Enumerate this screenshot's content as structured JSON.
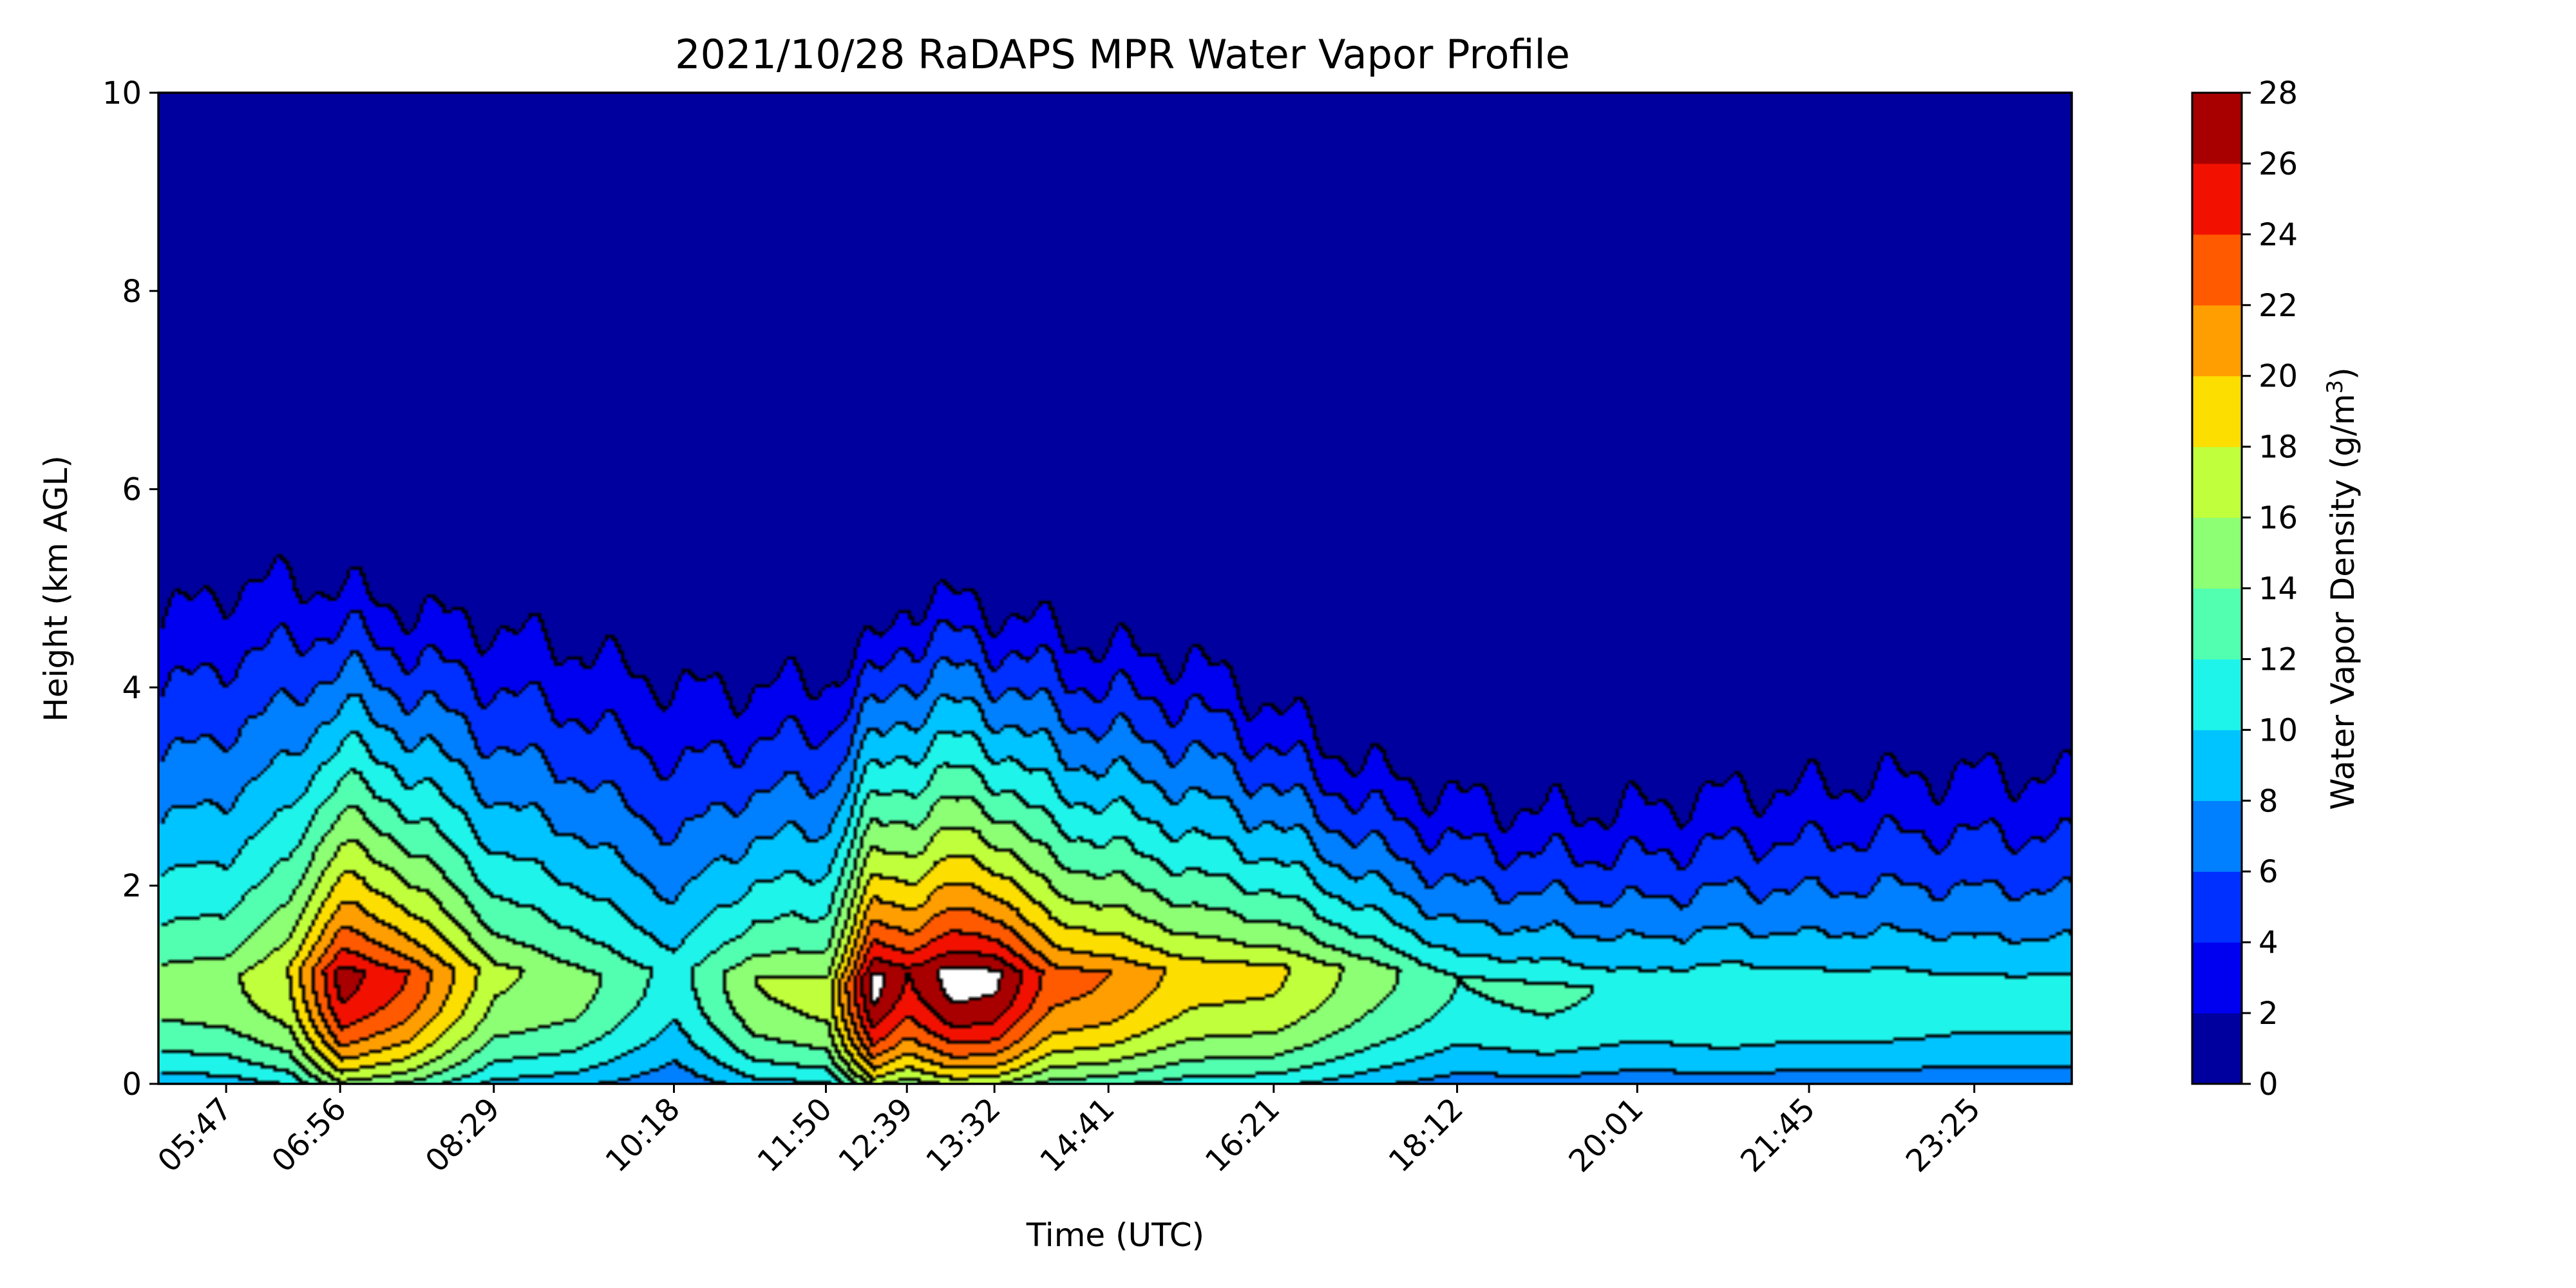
{
  "chart_data": {
    "type": "heatmap",
    "title": "2021/10/28 RaDAPS MPR Water Vapor Profile",
    "xlabel": "Time (UTC)",
    "ylabel": "Height (km AGL)",
    "ylim": [
      0,
      10
    ],
    "x_tick_labels": [
      {
        "label": "05:47",
        "hour": 5.783
      },
      {
        "label": "06:56",
        "hour": 6.933
      },
      {
        "label": "08:29",
        "hour": 8.483
      },
      {
        "label": "10:18",
        "hour": 10.3
      },
      {
        "label": "11:50",
        "hour": 11.833
      },
      {
        "label": "12:39",
        "hour": 12.65
      },
      {
        "label": "13:32",
        "hour": 13.533
      },
      {
        "label": "14:41",
        "hour": 14.683
      },
      {
        "label": "16:21",
        "hour": 16.35
      },
      {
        "label": "18:12",
        "hour": 18.2
      },
      {
        "label": "20:01",
        "hour": 20.017
      },
      {
        "label": "21:45",
        "hour": 21.75
      },
      {
        "label": "23:25",
        "hour": 23.417
      }
    ],
    "xlim_hours": [
      5.1,
      24.4
    ],
    "y_ticks": [
      0,
      2,
      4,
      6,
      8,
      10
    ],
    "colorbar": {
      "label": "Water Vapor Density (g/m³)",
      "label_base": "Water Vapor Density (g/m",
      "label_sup": "3",
      "label_end": ")",
      "levels": [
        0,
        2,
        4,
        6,
        8,
        10,
        12,
        14,
        16,
        18,
        20,
        22,
        24,
        26,
        28
      ],
      "colors": [
        "#00009f",
        "#0000f0",
        "#0030ff",
        "#0080ff",
        "#00c4ff",
        "#1ef4ea",
        "#52ffb0",
        "#8cff74",
        "#c0ff3c",
        "#fcde00",
        "#ff9e00",
        "#ff5a00",
        "#f21100",
        "#a80000"
      ]
    },
    "profiles": [
      {
        "hour": 5.1,
        "peak": 15.0,
        "peak_height": 1.1,
        "top": 4.7
      },
      {
        "hour": 5.783,
        "peak": 15.5,
        "peak_height": 1.1,
        "top": 5.0
      },
      {
        "hour": 6.4,
        "peak": 18.0,
        "peak_height": 1.2,
        "top": 5.1
      },
      {
        "hour": 6.933,
        "peak": 27.0,
        "peak_height": 1.15,
        "top": 5.0
      },
      {
        "hour": 7.6,
        "peak": 24.0,
        "peak_height": 1.15,
        "top": 4.8
      },
      {
        "hour": 8.483,
        "peak": 16.5,
        "peak_height": 1.2,
        "top": 4.6
      },
      {
        "hour": 9.3,
        "peak": 15.0,
        "peak_height": 1.1,
        "top": 4.4
      },
      {
        "hour": 10.3,
        "peak": 11.0,
        "peak_height": 1.2,
        "top": 4.0
      },
      {
        "hour": 11.1,
        "peak": 16.0,
        "peak_height": 1.1,
        "top": 4.0
      },
      {
        "hour": 11.833,
        "peak": 17.0,
        "peak_height": 1.0,
        "top": 4.1
      },
      {
        "hour": 12.3,
        "peak": 29.0,
        "peak_height": 1.1,
        "top": 4.4
      },
      {
        "hour": 12.65,
        "peak": 26.0,
        "peak_height": 1.2,
        "top": 4.9
      },
      {
        "hour": 13.1,
        "peak": 29.0,
        "peak_height": 1.15,
        "top": 4.9
      },
      {
        "hour": 13.533,
        "peak": 28.5,
        "peak_height": 1.15,
        "top": 4.8
      },
      {
        "hour": 14.1,
        "peak": 23.0,
        "peak_height": 1.15,
        "top": 4.6
      },
      {
        "hour": 14.683,
        "peak": 22.0,
        "peak_height": 1.15,
        "top": 4.4
      },
      {
        "hour": 15.5,
        "peak": 19.0,
        "peak_height": 1.2,
        "top": 4.3
      },
      {
        "hour": 16.35,
        "peak": 18.5,
        "peak_height": 1.2,
        "top": 3.8
      },
      {
        "hour": 17.3,
        "peak": 15.0,
        "peak_height": 1.2,
        "top": 3.2
      },
      {
        "hour": 18.2,
        "peak": 12.0,
        "peak_height": 1.1,
        "top": 2.9
      },
      {
        "hour": 19.1,
        "peak": 12.5,
        "peak_height": 1.0,
        "top": 2.75
      },
      {
        "hour": 20.017,
        "peak": 11.5,
        "peak_height": 1.0,
        "top": 2.8
      },
      {
        "hour": 20.9,
        "peak": 12.0,
        "peak_height": 1.0,
        "top": 2.95
      },
      {
        "hour": 21.75,
        "peak": 11.5,
        "peak_height": 1.0,
        "top": 3.0
      },
      {
        "hour": 22.6,
        "peak": 11.5,
        "peak_height": 1.0,
        "top": 3.1
      },
      {
        "hour": 23.417,
        "peak": 11.0,
        "peak_height": 1.0,
        "top": 3.15
      },
      {
        "hour": 24.4,
        "peak": 11.0,
        "peak_height": 1.0,
        "top": 3.1
      }
    ]
  }
}
